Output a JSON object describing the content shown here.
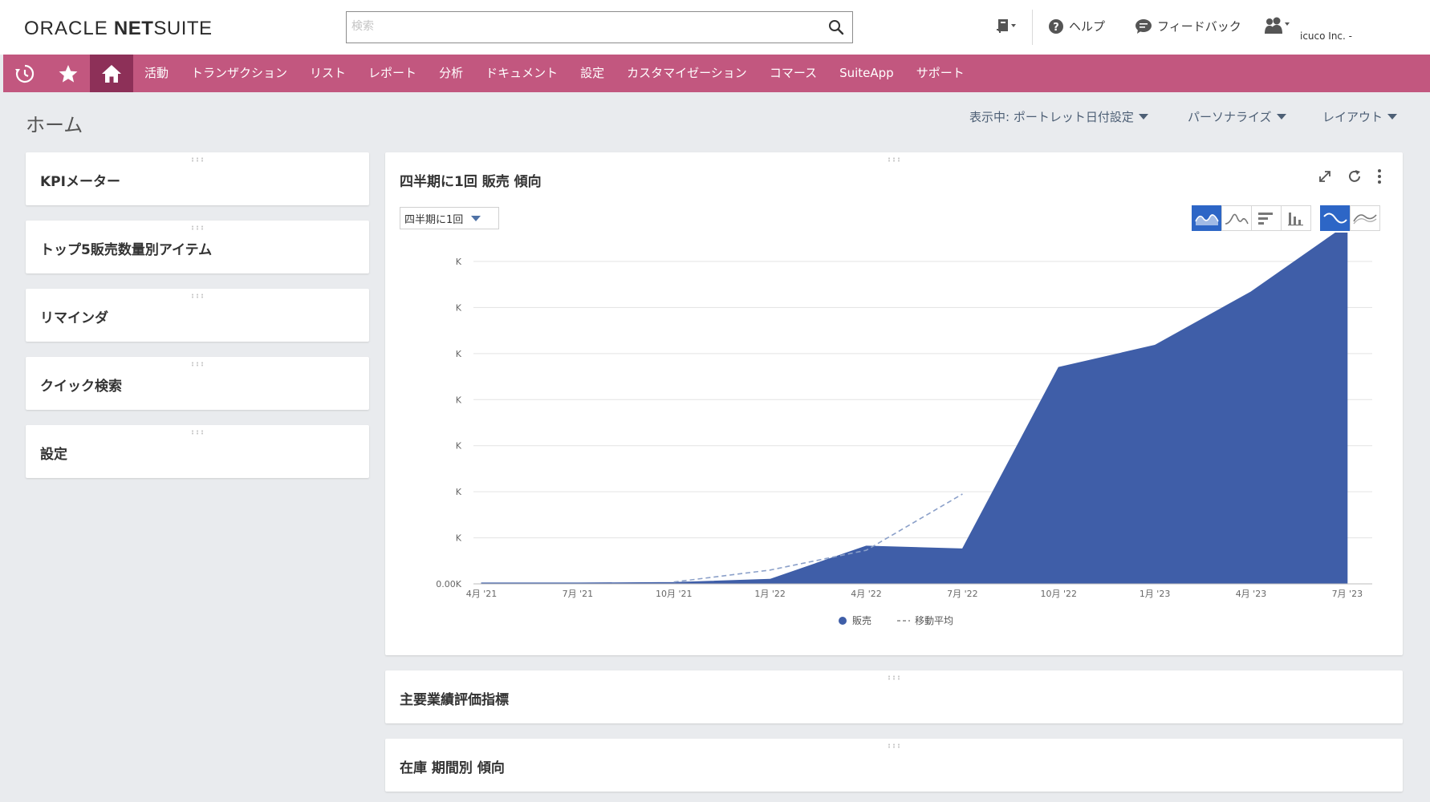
{
  "header": {
    "logo": {
      "part1": "ORACLE",
      "part2": "NET",
      "part3": "SUITE"
    },
    "search_placeholder": "検索",
    "help_label": "ヘルプ",
    "feedback_label": "フィードバック",
    "company": "icuco Inc. -"
  },
  "nav": {
    "items": [
      "活動",
      "トランザクション",
      "リスト",
      "レポート",
      "分析",
      "ドキュメント",
      "設定",
      "カスタマイゼーション",
      "コマース",
      "SuiteApp",
      "サポート"
    ]
  },
  "page": {
    "title": "ホーム",
    "view_label": "表示中: ポートレット日付設定",
    "personalize_label": "パーソナライズ",
    "layout_label": "レイアウト"
  },
  "left_portlets": [
    "KPIメーター",
    "トップ5販売数量別アイテム",
    "リマインダ",
    "クイック検索",
    "設定"
  ],
  "chart_portlet": {
    "title": "四半期に1回 販売 傾向",
    "period_select": "四半期に1回"
  },
  "chart_data": {
    "type": "area",
    "x": [
      "4月 '21",
      "7月 '21",
      "10月 '21",
      "1月 '22",
      "4月 '22",
      "7月 '22",
      "10月 '22",
      "1月 '23",
      "4月 '23",
      "7月 '23"
    ],
    "y_tick_labels": [
      "0.00K",
      "K",
      "K",
      "K",
      "K",
      "K",
      "K",
      "K"
    ],
    "ylim": [
      0,
      7
    ],
    "grid": true,
    "legend": "bottom",
    "series": [
      {
        "name": "販売",
        "kind": "area",
        "color": "#3f5ea8",
        "values": [
          0.02,
          0.02,
          0.03,
          0.1,
          0.82,
          0.76,
          4.7,
          5.18,
          6.34,
          7.8
        ]
      },
      {
        "name": "移動平均",
        "kind": "dashed-line",
        "color": "#8ba0c9",
        "values": [
          null,
          null,
          0.04,
          0.3,
          0.73,
          1.95,
          null,
          null,
          null,
          null
        ]
      }
    ]
  },
  "bottom_portlets": [
    "主要業績評価指標",
    "在庫 期間別 傾向"
  ]
}
